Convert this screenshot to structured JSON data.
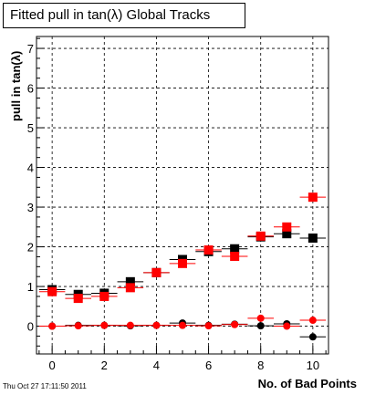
{
  "title": "Fitted pull in tan(λ)  Global Tracks",
  "timestamp": "Thu Oct 27 17:11:50 2011",
  "chart_data": {
    "type": "scatter",
    "xlabel": "No. of Bad Points",
    "ylabel": "pull in tan(λ)",
    "xlim": [
      -0.6,
      10.6
    ],
    "ylim": [
      -0.7,
      7.3
    ],
    "x_ticks": [
      0,
      2,
      4,
      6,
      8,
      10
    ],
    "x_tick_labels": [
      "0",
      "2",
      "4",
      "6",
      "8",
      "10"
    ],
    "y_ticks": [
      0,
      1,
      2,
      3,
      4,
      5,
      6,
      7
    ],
    "y_tick_labels": [
      "0",
      "1",
      "2",
      "3",
      "4",
      "5",
      "6",
      "7"
    ],
    "grid": true,
    "x_error": 0.5,
    "series": [
      {
        "color": "#000000",
        "marker": "square",
        "x": [
          0,
          1,
          2,
          3,
          4,
          5,
          6,
          7,
          8,
          9,
          10
        ],
        "y": [
          0.92,
          0.8,
          0.83,
          1.12,
          1.35,
          1.68,
          1.88,
          1.95,
          2.25,
          2.33,
          2.22
        ]
      },
      {
        "color": "#ff0000",
        "marker": "square",
        "x": [
          0,
          1,
          2,
          3,
          4,
          5,
          6,
          7,
          8,
          9,
          10
        ],
        "y": [
          0.87,
          0.7,
          0.75,
          0.97,
          1.35,
          1.58,
          1.92,
          1.76,
          2.27,
          2.5,
          3.25
        ]
      },
      {
        "color": "#000000",
        "marker": "circle",
        "x": [
          0,
          1,
          2,
          3,
          4,
          5,
          6,
          7,
          8,
          9,
          10
        ],
        "y": [
          0.0,
          0.02,
          0.02,
          0.01,
          0.02,
          0.08,
          0.02,
          0.05,
          0.01,
          0.06,
          -0.27
        ]
      },
      {
        "color": "#ff0000",
        "marker": "circle",
        "x": [
          0,
          1,
          2,
          3,
          4,
          5,
          6,
          7,
          8,
          9,
          10
        ],
        "y": [
          0.0,
          0.01,
          0.02,
          0.02,
          0.02,
          0.02,
          0.01,
          0.04,
          0.2,
          0.0,
          0.15
        ]
      }
    ]
  }
}
